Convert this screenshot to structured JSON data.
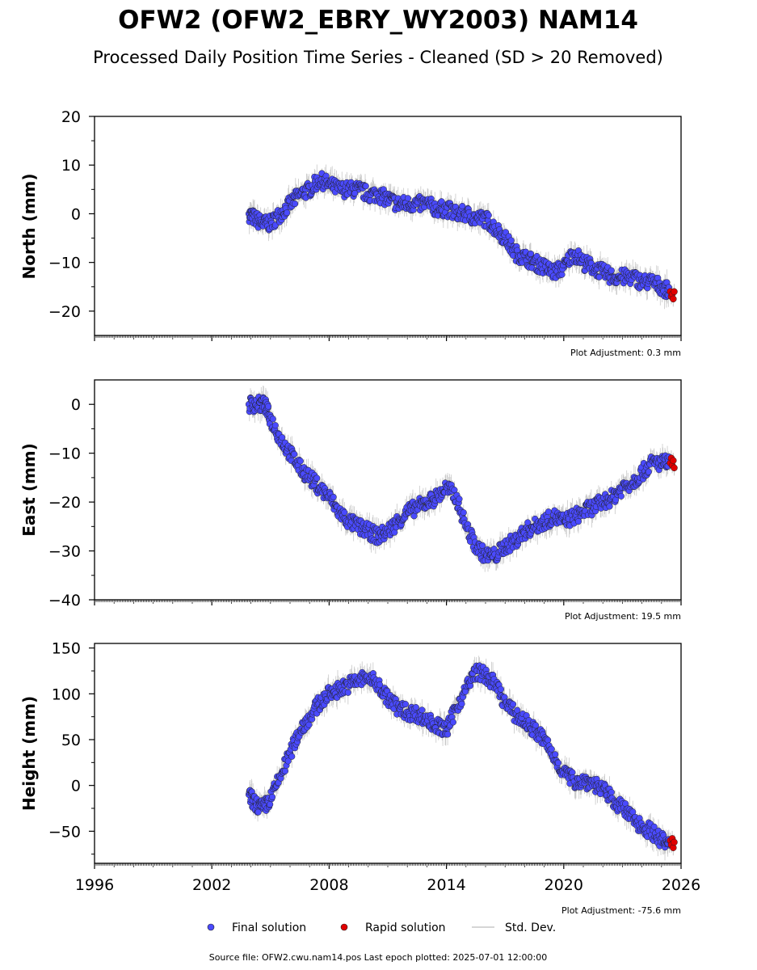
{
  "figure": {
    "title": "OFW2 (OFW2_EBRY_WY2003) NAM14",
    "subtitle": "Processed Daily Position Time Series - Cleaned (SD > 20 Removed)",
    "source_note": "Source file: OFW2.cwu.nam14.pos  Last epoch plotted: 2025-07-01 12:00:00"
  },
  "legend": {
    "final": "Final solution",
    "rapid": "Rapid solution",
    "std": "Std. Dev."
  },
  "colors": {
    "final": "#4a4aff",
    "rapid": "#e00000",
    "std": "#c8c8c8",
    "edge": "#222222"
  },
  "chart_data": [
    {
      "type": "scatter",
      "panel": "north",
      "ylabel": "North (mm)",
      "adjustment_text": "Plot Adjustment: 0.3 mm",
      "xlim": [
        1996,
        2026
      ],
      "ylim": [
        -25,
        20
      ],
      "yticks": [
        20,
        10,
        0,
        -10,
        -20
      ],
      "ytick_labels": [
        "20",
        "10",
        "0",
        "−10",
        "−20"
      ],
      "series": [
        {
          "name": "Final solution",
          "points": [
            [
              2003.9,
              0
            ],
            [
              2004.2,
              -1
            ],
            [
              2004.6,
              -2
            ],
            [
              2005.0,
              -2
            ],
            [
              2005.5,
              0
            ],
            [
              2006.0,
              2
            ],
            [
              2006.5,
              4
            ],
            [
              2007.0,
              5
            ],
            [
              2007.5,
              7
            ],
            [
              2008.0,
              6
            ],
            [
              2008.5,
              5
            ],
            [
              2009.0,
              5
            ],
            [
              2009.5,
              5
            ],
            [
              2010.0,
              4
            ],
            [
              2010.5,
              4
            ],
            [
              2011.0,
              3
            ],
            [
              2011.5,
              2
            ],
            [
              2012.0,
              2
            ],
            [
              2012.5,
              2
            ],
            [
              2013.0,
              2
            ],
            [
              2013.5,
              1
            ],
            [
              2014.0,
              1
            ],
            [
              2014.5,
              0
            ],
            [
              2015.0,
              0
            ],
            [
              2015.5,
              -1
            ],
            [
              2016.0,
              -1
            ],
            [
              2016.5,
              -3
            ],
            [
              2017.0,
              -5
            ],
            [
              2017.5,
              -8
            ],
            [
              2018.0,
              -9
            ],
            [
              2018.5,
              -10
            ],
            [
              2019.0,
              -11
            ],
            [
              2019.5,
              -12
            ],
            [
              2020.0,
              -11
            ],
            [
              2020.5,
              -8
            ],
            [
              2021.0,
              -10
            ],
            [
              2021.5,
              -11
            ],
            [
              2022.0,
              -12
            ],
            [
              2022.5,
              -13
            ],
            [
              2023.0,
              -13
            ],
            [
              2023.5,
              -13
            ],
            [
              2024.0,
              -14
            ],
            [
              2024.5,
              -14
            ],
            [
              2025.0,
              -15
            ],
            [
              2025.4,
              -16
            ]
          ]
        },
        {
          "name": "Rapid solution",
          "points": [
            [
              2025.45,
              -16
            ],
            [
              2025.5,
              -17
            ],
            [
              2025.55,
              -16.5
            ],
            [
              2025.6,
              -17.5
            ],
            [
              2025.65,
              -16
            ]
          ]
        }
      ]
    },
    {
      "type": "scatter",
      "panel": "east",
      "ylabel": "East (mm)",
      "adjustment_text": "Plot Adjustment: 19.5 mm",
      "xlim": [
        1996,
        2026
      ],
      "ylim": [
        -40,
        5
      ],
      "yticks": [
        0,
        -10,
        -20,
        -30,
        -40
      ],
      "ytick_labels": [
        "0",
        "−10",
        "−20",
        "−30",
        "−40"
      ],
      "series": [
        {
          "name": "Final solution",
          "points": [
            [
              2003.9,
              0
            ],
            [
              2004.3,
              0
            ],
            [
              2004.7,
              0
            ],
            [
              2005.0,
              -3
            ],
            [
              2005.5,
              -7
            ],
            [
              2006.0,
              -10
            ],
            [
              2006.5,
              -13
            ],
            [
              2007.0,
              -15
            ],
            [
              2007.5,
              -17
            ],
            [
              2008.0,
              -19
            ],
            [
              2008.5,
              -22
            ],
            [
              2009.0,
              -24
            ],
            [
              2009.5,
              -25
            ],
            [
              2010.0,
              -26
            ],
            [
              2010.5,
              -27
            ],
            [
              2011.0,
              -26
            ],
            [
              2011.5,
              -24
            ],
            [
              2012.0,
              -22
            ],
            [
              2012.5,
              -21
            ],
            [
              2013.0,
              -20
            ],
            [
              2013.5,
              -19
            ],
            [
              2014.0,
              -17
            ],
            [
              2014.5,
              -19
            ],
            [
              2015.0,
              -25
            ],
            [
              2015.5,
              -29
            ],
            [
              2016.0,
              -31
            ],
            [
              2016.5,
              -31
            ],
            [
              2017.0,
              -29
            ],
            [
              2017.5,
              -28
            ],
            [
              2018.0,
              -26
            ],
            [
              2018.5,
              -25
            ],
            [
              2019.0,
              -24
            ],
            [
              2019.5,
              -23
            ],
            [
              2020.0,
              -24
            ],
            [
              2020.5,
              -23
            ],
            [
              2021.0,
              -22
            ],
            [
              2021.5,
              -21
            ],
            [
              2022.0,
              -20
            ],
            [
              2022.5,
              -19
            ],
            [
              2023.0,
              -17
            ],
            [
              2023.5,
              -16
            ],
            [
              2024.0,
              -14
            ],
            [
              2024.5,
              -12
            ],
            [
              2025.0,
              -12
            ],
            [
              2025.4,
              -12
            ]
          ]
        },
        {
          "name": "Rapid solution",
          "points": [
            [
              2025.45,
              -12
            ],
            [
              2025.5,
              -11
            ],
            [
              2025.55,
              -12.5
            ],
            [
              2025.6,
              -11.5
            ],
            [
              2025.65,
              -13
            ]
          ]
        }
      ]
    },
    {
      "type": "scatter",
      "panel": "height",
      "ylabel": "Height (mm)",
      "adjustment_text": "Plot Adjustment: -75.6 mm",
      "xlim": [
        1996,
        2026
      ],
      "ylim": [
        -85,
        155
      ],
      "yticks": [
        150,
        100,
        50,
        0,
        -50
      ],
      "ytick_labels": [
        "150",
        "100",
        "50",
        "0",
        "−50"
      ],
      "xticks": [
        1996,
        2002,
        2008,
        2014,
        2020,
        2026
      ],
      "xtick_labels": [
        "1996",
        "2002",
        "2008",
        "2014",
        "2020",
        "2026"
      ],
      "series": [
        {
          "name": "Final solution",
          "points": [
            [
              2003.9,
              -10
            ],
            [
              2004.2,
              -20
            ],
            [
              2004.6,
              -25
            ],
            [
              2005.0,
              -15
            ],
            [
              2005.5,
              10
            ],
            [
              2006.0,
              35
            ],
            [
              2006.5,
              60
            ],
            [
              2007.0,
              75
            ],
            [
              2007.5,
              90
            ],
            [
              2008.0,
              100
            ],
            [
              2008.5,
              105
            ],
            [
              2009.0,
              110
            ],
            [
              2009.5,
              115
            ],
            [
              2010.0,
              118
            ],
            [
              2010.5,
              110
            ],
            [
              2011.0,
              95
            ],
            [
              2011.5,
              85
            ],
            [
              2012.0,
              80
            ],
            [
              2012.5,
              78
            ],
            [
              2013.0,
              72
            ],
            [
              2013.5,
              65
            ],
            [
              2014.0,
              60
            ],
            [
              2014.5,
              85
            ],
            [
              2015.0,
              105
            ],
            [
              2015.5,
              125
            ],
            [
              2016.0,
              120
            ],
            [
              2016.5,
              110
            ],
            [
              2017.0,
              90
            ],
            [
              2017.5,
              78
            ],
            [
              2018.0,
              70
            ],
            [
              2018.5,
              60
            ],
            [
              2019.0,
              50
            ],
            [
              2019.5,
              30
            ],
            [
              2020.0,
              15
            ],
            [
              2020.5,
              5
            ],
            [
              2021.0,
              5
            ],
            [
              2021.5,
              3
            ],
            [
              2022.0,
              -5
            ],
            [
              2022.5,
              -15
            ],
            [
              2023.0,
              -25
            ],
            [
              2023.5,
              -35
            ],
            [
              2024.0,
              -45
            ],
            [
              2024.5,
              -50
            ],
            [
              2025.0,
              -60
            ],
            [
              2025.4,
              -65
            ]
          ]
        },
        {
          "name": "Rapid solution",
          "points": [
            [
              2025.45,
              -60
            ],
            [
              2025.5,
              -65
            ],
            [
              2025.55,
              -58
            ],
            [
              2025.6,
              -68
            ],
            [
              2025.65,
              -62
            ]
          ]
        }
      ]
    }
  ]
}
